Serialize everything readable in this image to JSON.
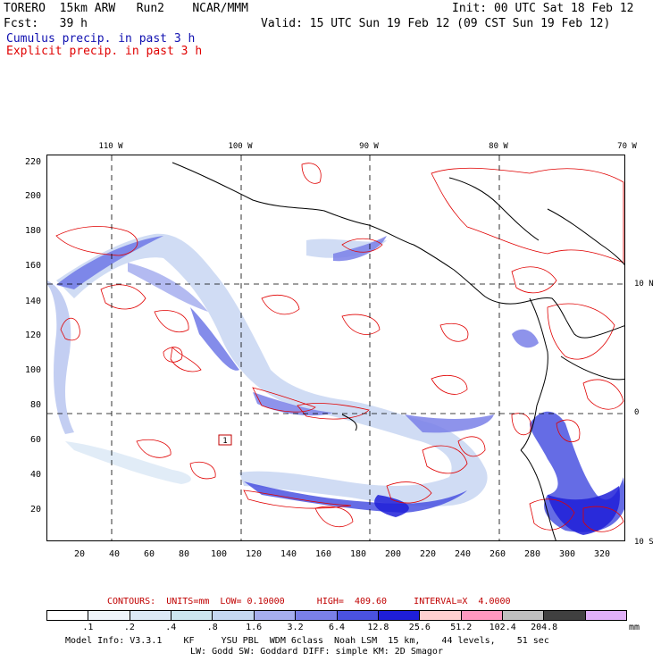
{
  "header": {
    "line1_left": "TORERO  15km ARW   Run2    NCAR/MMM",
    "line1_right": "Init: 00 UTC Sat 18 Feb 12",
    "line2_left": "Fcst:   39 h",
    "line2_right": "Valid: 15 UTC Sun 19 Feb 12 (09 CST Sun 19 Feb 12)",
    "cumulus_label": "Cumulus precip. in past 3 h",
    "explicit_label": "Explicit precip. in past 3 h",
    "cumulus_color": "#1010b0",
    "explicit_color": "#e00000"
  },
  "map": {
    "lon_labels": [
      "110 W",
      "100 W",
      "90 W",
      "80 W",
      "70 W"
    ],
    "lat_labels": [
      "10 N",
      "0",
      "10 S"
    ],
    "y_ticks": [
      "220",
      "200",
      "180",
      "160",
      "140",
      "120",
      "100",
      "80",
      "60",
      "40",
      "20"
    ],
    "x_ticks": [
      "20",
      "40",
      "60",
      "80",
      "100",
      "120",
      "140",
      "160",
      "180",
      "200",
      "220",
      "240",
      "260",
      "280",
      "300",
      "320"
    ],
    "box_label": "1"
  },
  "contours": {
    "text": "CONTOURS:  UNITS=mm  LOW= 0.10000      HIGH=  409.60     INTERVAL=X  4.0000"
  },
  "legend": {
    "colors": [
      "#ffffff",
      "#eef4fb",
      "#dce9f6",
      "#cde6ef",
      "#c5d8f2",
      "#a6aeee",
      "#7a80e8",
      "#4a52e0",
      "#1e1ed8",
      "#ffd0d0",
      "#ff98c0",
      "#c0c0c0",
      "#404040",
      "#e0b0f8"
    ],
    "labels": [
      ".1",
      ".2",
      ".4",
      ".8",
      "1.6",
      "3.2",
      "6.4",
      "12.8",
      "25.6",
      "51.2",
      "102.4",
      "204.8"
    ],
    "unit": "mm"
  },
  "footer": {
    "line1": "Model Info: V3.3.1    KF     YSU PBL  WDM 6class  Noah LSM  15 km,    44 levels,    51 sec",
    "line2": "LW: Godd SW: Goddard DIFF: simple KM: 2D Smagor"
  }
}
